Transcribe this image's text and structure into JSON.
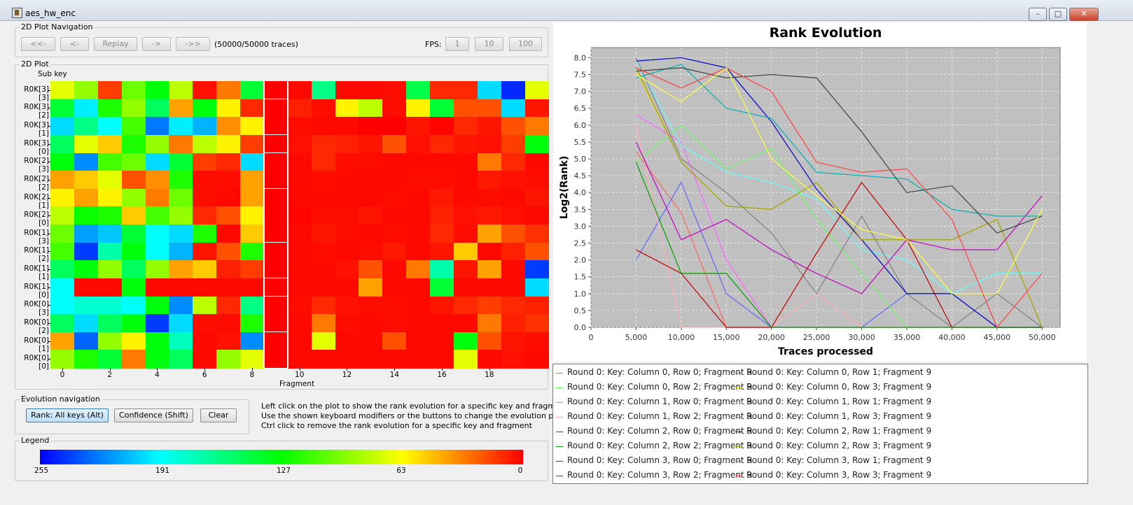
{
  "window": {
    "title": "aes_hw_enc"
  },
  "nav": {
    "group_label": "2D Plot Navigation",
    "buttons": [
      "<<-",
      "<-",
      "Replay",
      "->",
      "->>"
    ],
    "traces_status": "(50000/50000 traces)",
    "fps_label": "FPS:",
    "fps_buttons": [
      "1",
      "10",
      "100"
    ]
  },
  "plot2d": {
    "group_label": "2D Plot",
    "y_axis_title": "Sub key",
    "x_axis_title": "Fragment",
    "row_labels": [
      "R0K[3][3]",
      "R0K[3][2]",
      "R0K[3][1]",
      "R0K[3][0]",
      "R0K[2][3]",
      "R0K[2][2]",
      "R0K[2][1]",
      "R0K[2][0]",
      "R0K[1][3]",
      "R0K[1][2]",
      "R0K[1][1]",
      "R0K[1][0]",
      "R0K[0][3]",
      "R0K[0][2]",
      "R0K[0][1]",
      "R0K[0][0]"
    ],
    "x_ticks": [
      "0",
      "2",
      "4",
      "6",
      "8",
      "10",
      "12",
      "14",
      "16",
      "18"
    ],
    "grid_values": [
      [
        70,
        90,
        15,
        100,
        130,
        80,
        4,
        30,
        140,
        0,
        2,
        160,
        2,
        2,
        3,
        145,
        10,
        10,
        200,
        245,
        70
      ],
      [
        140,
        195,
        120,
        90,
        150,
        40,
        130,
        60,
        10,
        0,
        8,
        3,
        60,
        80,
        3,
        60,
        140,
        20,
        20,
        200,
        5
      ],
      [
        200,
        160,
        190,
        110,
        225,
        195,
        210,
        35,
        60,
        0,
        3,
        2,
        2,
        0,
        0,
        5,
        1,
        10,
        5,
        20,
        30
      ],
      [
        150,
        70,
        50,
        120,
        90,
        30,
        80,
        60,
        15,
        0,
        4,
        10,
        8,
        5,
        20,
        4,
        10,
        5,
        4,
        15,
        130
      ],
      [
        130,
        220,
        110,
        100,
        200,
        140,
        15,
        10,
        200,
        0,
        2,
        10,
        3,
        3,
        2,
        2,
        2,
        2,
        30,
        10,
        2
      ],
      [
        40,
        50,
        70,
        20,
        35,
        120,
        3,
        3,
        40,
        0,
        2,
        3,
        2,
        2,
        2,
        3,
        3,
        2,
        6,
        4,
        3
      ],
      [
        60,
        40,
        60,
        90,
        30,
        100,
        3,
        2,
        40,
        0,
        2,
        2,
        2,
        2,
        3,
        2,
        6,
        2,
        3,
        2,
        5
      ],
      [
        80,
        125,
        120,
        50,
        110,
        90,
        10,
        20,
        60,
        0,
        1,
        3,
        3,
        5,
        2,
        2,
        8,
        4,
        6,
        4,
        2
      ],
      [
        100,
        215,
        205,
        140,
        190,
        200,
        120,
        2,
        50,
        0,
        2,
        5,
        3,
        2,
        3,
        2,
        10,
        3,
        40,
        20,
        12
      ],
      [
        110,
        240,
        170,
        130,
        190,
        210,
        5,
        20,
        120,
        0,
        2,
        3,
        2,
        3,
        6,
        2,
        5,
        50,
        2,
        8,
        20
      ],
      [
        150,
        130,
        90,
        150,
        90,
        40,
        50,
        8,
        15,
        0,
        2,
        2,
        4,
        20,
        2,
        30,
        170,
        5,
        40,
        2,
        240
      ],
      [
        190,
        2,
        2,
        130,
        2,
        2,
        2,
        2,
        2,
        0,
        2,
        2,
        2,
        40,
        2,
        2,
        140,
        2,
        2,
        2,
        200
      ],
      [
        190,
        180,
        180,
        190,
        130,
        220,
        80,
        10,
        160,
        0,
        3,
        10,
        4,
        3,
        3,
        2,
        5,
        10,
        15,
        10,
        8
      ],
      [
        150,
        200,
        150,
        130,
        240,
        200,
        3,
        3,
        120,
        0,
        2,
        30,
        3,
        2,
        3,
        2,
        2,
        2,
        30,
        8,
        12
      ],
      [
        40,
        230,
        90,
        60,
        130,
        175,
        2,
        4,
        220,
        0,
        2,
        70,
        2,
        2,
        20,
        2,
        2,
        130,
        20,
        5,
        3
      ],
      [
        90,
        120,
        140,
        30,
        130,
        150,
        2,
        90,
        70,
        0,
        2,
        2,
        2,
        2,
        2,
        2,
        2,
        70,
        2,
        4,
        2
      ]
    ]
  },
  "evolution_nav": {
    "group_label": "Evolution navigation",
    "rank_button": "Rank: All keys (Alt)",
    "confidence_button": "Confidence (Shift)",
    "clear_button": "Clear"
  },
  "help": [
    "Left click on the plot to show the rank evolution for a specific key and fragment",
    "Use the shown keyboard modifiers or the buttons to change the evolution plot style",
    "Ctrl click to remove the rank evolution for a specific key and fragment"
  ],
  "colorbar": {
    "group_label": "Legend",
    "ticks": [
      "255",
      "191",
      "127",
      "63",
      "0"
    ]
  },
  "chart_data": {
    "type": "line",
    "title": "Rank Evolution",
    "xlabel": "Traces processed",
    "ylabel": "Log2(Rank)",
    "xlim": [
      0,
      52000
    ],
    "ylim": [
      0,
      8.3
    ],
    "x_ticks": [
      0,
      5000,
      10000,
      15000,
      20000,
      25000,
      30000,
      35000,
      40000,
      45000,
      50000
    ],
    "x_tick_labels": [
      "0",
      "5,000",
      "10,000",
      "15,000",
      "20,000",
      "25,000",
      "30,000",
      "35,000",
      "40,000",
      "45,000",
      "50,000"
    ],
    "y_ticks": [
      0,
      0.5,
      1,
      1.5,
      2,
      2.5,
      3,
      3.5,
      4,
      4.5,
      5,
      5.5,
      6,
      6.5,
      7,
      7.5,
      8
    ],
    "y_tick_labels": [
      "0.0",
      "0.5",
      "1.0",
      "1.5",
      "2.0",
      "2.5",
      "3.0",
      "3.5",
      "4.0",
      "4.5",
      "5.0",
      "5.5",
      "6.0",
      "6.5",
      "7.0",
      "7.5",
      "8.0"
    ],
    "grid": true,
    "legend_position": "bottom",
    "x": [
      5000,
      10000,
      15000,
      20000,
      25000,
      30000,
      35000,
      40000,
      45000,
      50000
    ],
    "series": [
      {
        "name": "Round 0: Key: Column 0, Row 0; Fragment 9",
        "color": "#ff6464",
        "values": [
          5.2,
          3.4,
          0,
          0,
          0,
          0,
          0,
          0,
          0,
          0
        ]
      },
      {
        "name": "Round 0: Key: Column 0, Row 1; Fragment 9",
        "color": "#6464ff",
        "values": [
          2.0,
          4.3,
          1.0,
          0,
          0,
          0,
          1.0,
          1.0,
          0,
          0
        ]
      },
      {
        "name": "Round 0: Key: Column 0, Row 2; Fragment 9",
        "color": "#64ff64",
        "values": [
          4.9,
          6.0,
          4.7,
          5.3,
          3.2,
          1.6,
          0,
          0,
          0,
          0
        ]
      },
      {
        "name": "Round 0: Key: Column 0, Row 3; Fragment 9",
        "color": "#dddd22",
        "values": [
          7.6,
          4.9,
          3.6,
          3.5,
          4.3,
          2.6,
          2.6,
          2.6,
          3.2,
          0
        ]
      },
      {
        "name": "Round 0: Key: Column 1, Row 0; Fragment 9",
        "color": "#ff64ff",
        "values": [
          6.3,
          5.5,
          2.0,
          0,
          0,
          0,
          0,
          0,
          0,
          0
        ]
      },
      {
        "name": "Round 0: Key: Column 1, Row 1; Fragment 9",
        "color": "#64ffff",
        "values": [
          7.9,
          5.4,
          4.6,
          4.3,
          3.8,
          2.3,
          2.0,
          1.0,
          1.6,
          1.6
        ]
      },
      {
        "name": "Round 0: Key: Column 1, Row 2; Fragment 9",
        "color": "#ffafaf",
        "values": [
          6.0,
          0,
          0,
          0,
          1.0,
          0,
          0,
          0,
          0,
          0
        ]
      },
      {
        "name": "Round 0: Key: Column 1, Row 3; Fragment 9",
        "color": "#808080",
        "values": [
          8.0,
          5.0,
          4.0,
          2.8,
          1.0,
          3.3,
          1.0,
          0,
          1.0,
          0
        ]
      },
      {
        "name": "Round 0: Key: Column 2, Row 0; Fragment 9",
        "color": "#c00000",
        "values": [
          2.3,
          1.6,
          0,
          0,
          2.2,
          4.3,
          2.6,
          0,
          0,
          0
        ]
      },
      {
        "name": "Round 0: Key: Column 2, Row 1; Fragment 9",
        "color": "#0000c0",
        "values": [
          7.9,
          8.0,
          7.7,
          6.1,
          4.1,
          2.6,
          1.0,
          1.0,
          0,
          0
        ]
      },
      {
        "name": "Round 0: Key: Column 2, Row 2; Fragment 9",
        "color": "#00a000",
        "values": [
          4.9,
          1.6,
          1.6,
          0,
          0,
          0,
          0,
          0,
          0,
          0
        ]
      },
      {
        "name": "Round 0: Key: Column 2, Row 3; Fragment 9",
        "color": "#a0a000",
        "values": [
          7.7,
          4.9,
          3.6,
          3.5,
          4.3,
          2.6,
          2.6,
          2.6,
          3.2,
          0
        ]
      },
      {
        "name": "Round 0: Key: Column 3, Row 0; Fragment 9",
        "color": "#c000c0",
        "values": [
          5.5,
          2.6,
          3.2,
          2.3,
          1.6,
          1.0,
          2.6,
          2.3,
          2.3,
          3.9
        ]
      },
      {
        "name": "Round 0: Key: Column 3, Row 1; Fragment 9",
        "color": "#00b0b0",
        "values": [
          7.4,
          7.8,
          6.5,
          6.2,
          4.6,
          4.5,
          4.4,
          3.5,
          3.3,
          3.3
        ]
      },
      {
        "name": "Round 0: Key: Column 3, Row 2; Fragment 9",
        "color": "#404040",
        "values": [
          7.6,
          7.7,
          7.4,
          7.5,
          7.4,
          5.8,
          4.0,
          4.2,
          2.8,
          3.3
        ]
      },
      {
        "name": "Round 0: Key: Column 3, Row 3; Fragment 9",
        "color": "#ff4040",
        "values": [
          7.7,
          7.1,
          7.7,
          7.0,
          4.9,
          4.6,
          4.7,
          3.2,
          0,
          1.6
        ]
      },
      {
        "name": "",
        "color": "#ffff40",
        "values": [
          7.5,
          6.7,
          7.7,
          5.0,
          3.9,
          2.9,
          2.6,
          1.0,
          1.0,
          3.5
        ]
      }
    ]
  }
}
